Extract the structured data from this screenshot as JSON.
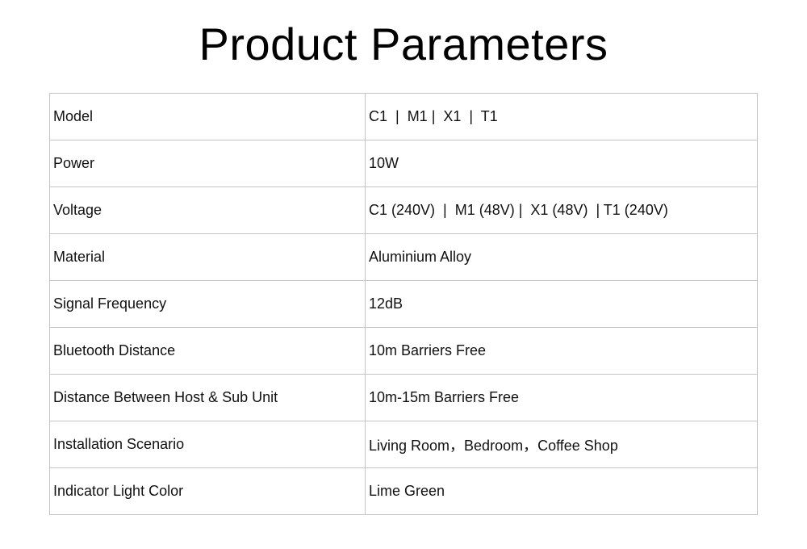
{
  "title": "Product Parameters",
  "rows": [
    {
      "label": "Model",
      "value": "C1  |  M1 |  X1  |  T1"
    },
    {
      "label": "Power",
      "value": "10W"
    },
    {
      "label": "Voltage",
      "value": "C1 (240V)  |  M1 (48V) |  X1 (48V)  | T1 (240V)"
    },
    {
      "label": "Material",
      "value": "Aluminium Alloy"
    },
    {
      "label": "Signal Frequency",
      "value": "12dB"
    },
    {
      "label": "Bluetooth Distance",
      "value": "10m Barriers Free"
    },
    {
      "label": "Distance Between Host & Sub Unit",
      "value": "10m-15m Barriers Free"
    },
    {
      "label": "Installation Scenario",
      "value": "Living Room，Bedroom，Coffee Shop"
    },
    {
      "label": "Indicator Light Color",
      "value": "Lime Green"
    }
  ]
}
